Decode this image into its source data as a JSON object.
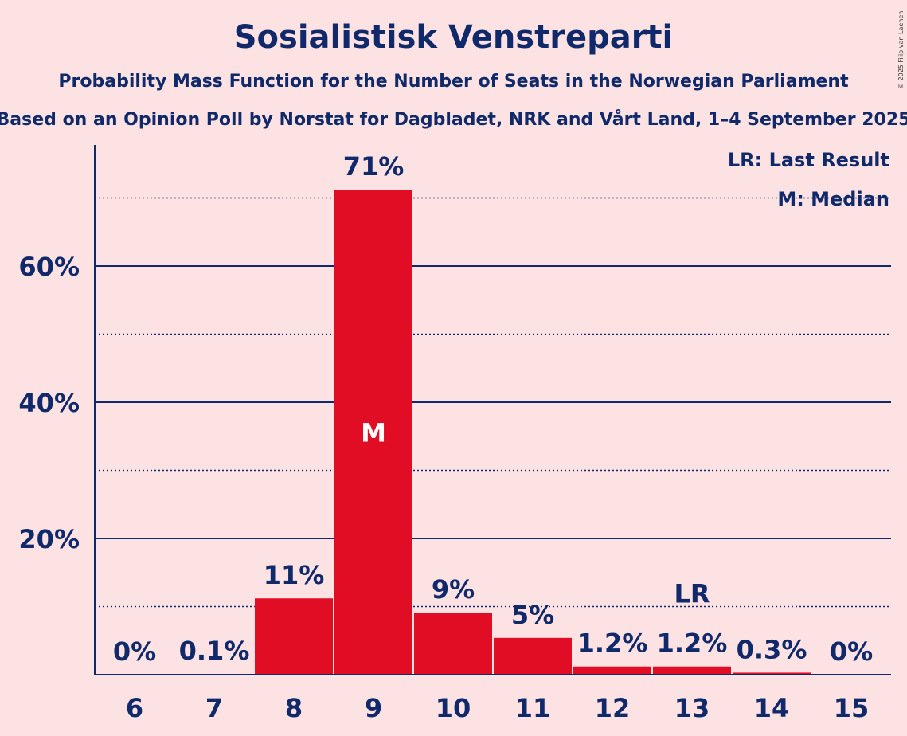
{
  "title": "Sosialistisk Venstreparti",
  "subtitle": "Probability Mass Function for the Number of Seats in the Norwegian Parliament",
  "subtitle2": "Based on an Opinion Poll by Norstat for Dagbladet, NRK and Vårt Land, 1–4 September 2025",
  "copyright": "© 2025 Filip van Laenen",
  "legend": {
    "last_result": "LR: Last Result",
    "median": "M: Median"
  },
  "colors": {
    "background": "#fde2e3",
    "bar": "#e00d25",
    "text": "#10296a"
  },
  "chart_data": {
    "type": "bar",
    "title": "Sosialistisk Venstreparti",
    "categories": [
      "6",
      "7",
      "8",
      "9",
      "10",
      "11",
      "12",
      "13",
      "14",
      "15"
    ],
    "values": [
      0,
      0.1,
      11.2,
      71.2,
      9.1,
      5.4,
      1.2,
      1.2,
      0.3,
      0
    ],
    "labels": [
      "0%",
      "0.1%",
      "11%",
      "71%",
      "9%",
      "5%",
      "1.2%",
      "1.2%",
      "0.3%",
      "0%"
    ],
    "ylim": [
      0,
      78
    ],
    "yticks": [
      20,
      40,
      60
    ],
    "ytick_labels": [
      "20%",
      "40%",
      "60%"
    ],
    "minor_gridlines": [
      10,
      30,
      50,
      70
    ],
    "median_category": "9",
    "median_marker": "M",
    "last_result_category": "13",
    "last_result_marker": "LR",
    "legend_position": "top-right"
  }
}
